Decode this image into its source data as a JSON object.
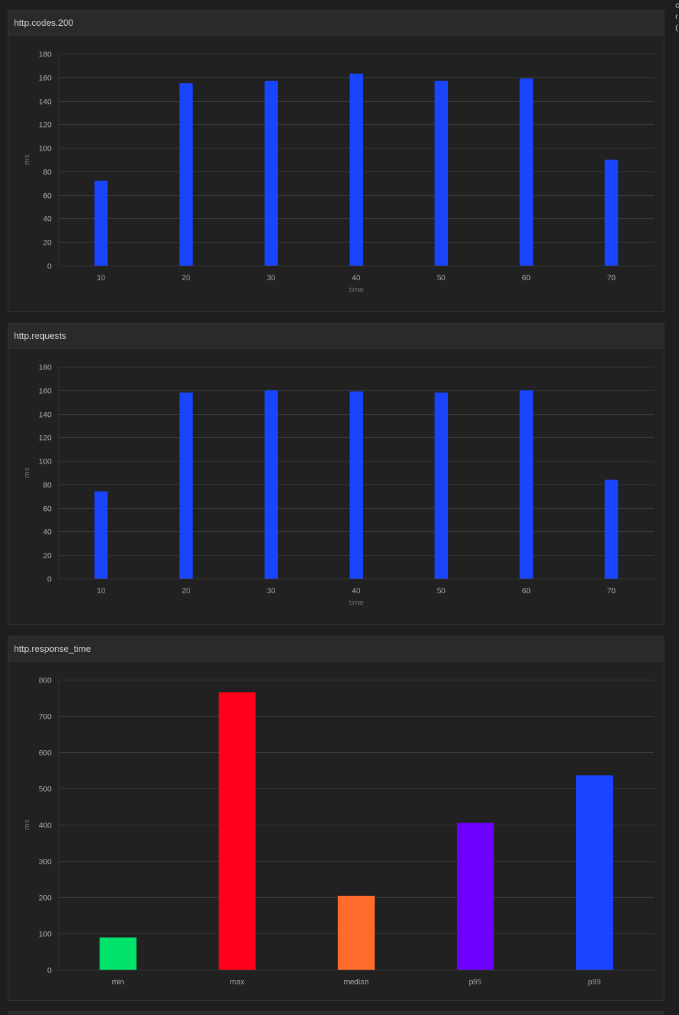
{
  "panels": [
    {
      "title": "http.codes.200",
      "chart_data": {
        "type": "bar",
        "title": "http.codes.200",
        "xlabel": "time",
        "ylabel": "ms",
        "categories": [
          "10",
          "20",
          "30",
          "40",
          "50",
          "60",
          "70"
        ],
        "values": [
          72,
          155,
          157,
          163,
          157,
          159,
          90
        ],
        "ylim": [
          0,
          180
        ],
        "yticks": [
          0,
          20,
          40,
          60,
          80,
          100,
          120,
          140,
          160,
          180
        ],
        "colors": [
          "#1a45ff"
        ],
        "grid": true
      }
    },
    {
      "title": "http.requests",
      "chart_data": {
        "type": "bar",
        "title": "http.requests",
        "xlabel": "time",
        "ylabel": "ms",
        "categories": [
          "10",
          "20",
          "30",
          "40",
          "50",
          "60",
          "70"
        ],
        "values": [
          74,
          158,
          160,
          159,
          158,
          160,
          84
        ],
        "ylim": [
          0,
          180
        ],
        "yticks": [
          0,
          20,
          40,
          60,
          80,
          100,
          120,
          140,
          160,
          180
        ],
        "colors": [
          "#1a45ff"
        ],
        "grid": true
      }
    },
    {
      "title": "http.response_time",
      "chart_data": {
        "type": "bar",
        "title": "http.response_time",
        "xlabel": "",
        "ylabel": "ms",
        "categories": [
          "min",
          "max",
          "median",
          "p95",
          "p99"
        ],
        "values": [
          89,
          765,
          204,
          405,
          536
        ],
        "ylim": [
          0,
          800
        ],
        "yticks": [
          0,
          100,
          200,
          300,
          400,
          500,
          600,
          700,
          800
        ],
        "colors": [
          "#00e36b",
          "#ff001a",
          "#ff6b2b",
          "#6e00ff",
          "#1a45ff"
        ],
        "grid": true
      }
    }
  ],
  "side_text": [
    "c",
    "r",
    "("
  ]
}
